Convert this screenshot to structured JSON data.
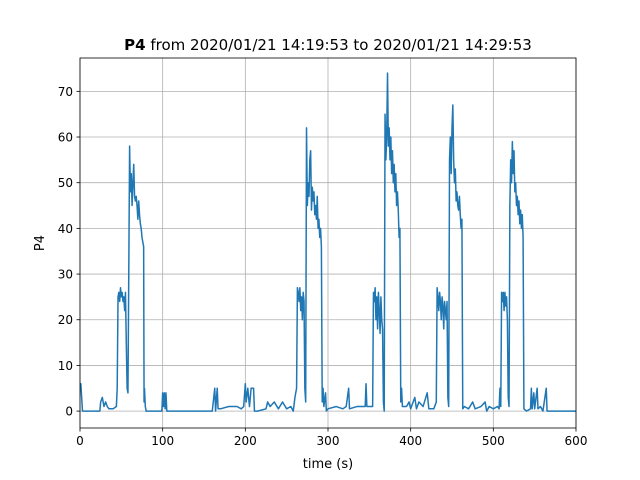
{
  "chart_data": {
    "type": "line",
    "title": {
      "variable": "P4",
      "text": "from 2020/01/21 14:19:53 to 2020/01/21 14:29:53"
    },
    "xlabel": "time (s)",
    "ylabel": "P4",
    "xlim": [
      0,
      600
    ],
    "ylim": [
      -3.7,
      77.3
    ],
    "xticks": [
      0,
      100,
      200,
      300,
      400,
      500,
      600
    ],
    "yticks": [
      0,
      10,
      20,
      30,
      40,
      50,
      60,
      70
    ],
    "grid": true,
    "series": [
      {
        "name": "P4",
        "color": "#1f77b4",
        "x": [
          0,
          1,
          2,
          3,
          10,
          20,
          24,
          25,
          27,
          29,
          31,
          33,
          35,
          40,
          44,
          45,
          46,
          47,
          48,
          49,
          50,
          51,
          52,
          53,
          54,
          55,
          56,
          57,
          58,
          59,
          60,
          61,
          62,
          63,
          64,
          65,
          66,
          67,
          68,
          69,
          70,
          71,
          72,
          73,
          74,
          75,
          76,
          77,
          77.5,
          78,
          79,
          80,
          99,
          100,
          101,
          102,
          103,
          104,
          105,
          160,
          163,
          164,
          166,
          167,
          170,
          180,
          190,
          195,
          198,
          200,
          201,
          203,
          205,
          207,
          210,
          211,
          215,
          225,
          227,
          230,
          235,
          240,
          245,
          250,
          255,
          258,
          260,
          262,
          263,
          264,
          265,
          266,
          267,
          268,
          269,
          270,
          271,
          272,
          273,
          274,
          275,
          276,
          277,
          278,
          279,
          280,
          281,
          282,
          283,
          284,
          285,
          286,
          287,
          288,
          289,
          290,
          291,
          292,
          293,
          294,
          295,
          297,
          298,
          300,
          310,
          318,
          322,
          325,
          326,
          335,
          345,
          346,
          347,
          350,
          354,
          355,
          356,
          357,
          358,
          359,
          360,
          361,
          362,
          363,
          364,
          365,
          366,
          367,
          368,
          369,
          370,
          371,
          372,
          373,
          374,
          375,
          376,
          377,
          378,
          379,
          380,
          381,
          382,
          383,
          384,
          385,
          386,
          387,
          388,
          389,
          390,
          395,
          398,
          400,
          405,
          407,
          410,
          415,
          420,
          422,
          428,
          431,
          432,
          433,
          434,
          435,
          436,
          437,
          438,
          439,
          440,
          441,
          442,
          443,
          444,
          445,
          446,
          447,
          448,
          449,
          450,
          451,
          452,
          453,
          454,
          455,
          456,
          457,
          458,
          459,
          460,
          461,
          462,
          463,
          465,
          470,
          475,
          478,
          485,
          490,
          492,
          495,
          500,
          505,
          507,
          508,
          509,
          510,
          511,
          512,
          513,
          514,
          515,
          516,
          517,
          518,
          519,
          520,
          521,
          522,
          523,
          524,
          525,
          526,
          527,
          528,
          529,
          530,
          531,
          532,
          533,
          534,
          535,
          536,
          537,
          540,
          545,
          546,
          547,
          549,
          550,
          553,
          554,
          557,
          560,
          564,
          565,
          600
        ],
        "values": [
          5,
          6,
          3,
          0,
          0,
          0,
          0,
          2,
          3,
          1,
          2,
          1,
          0.5,
          0.5,
          1,
          5,
          25,
          26,
          24,
          27,
          25,
          26,
          24,
          25,
          22,
          26,
          15,
          5,
          4,
          30,
          58,
          48,
          52,
          45,
          50,
          54,
          47,
          46,
          47,
          45,
          42,
          46,
          43,
          41,
          40,
          38,
          37,
          36,
          2,
          5,
          1,
          0,
          0,
          4,
          1,
          4,
          0.5,
          4,
          0,
          0,
          5,
          0,
          5,
          0.5,
          0.5,
          1,
          1,
          0.5,
          1,
          6,
          2,
          5,
          1,
          5,
          5,
          0,
          0,
          0.5,
          2,
          1,
          2,
          0.5,
          2,
          0.5,
          1,
          0,
          3,
          5,
          27,
          26,
          24,
          27,
          22,
          25,
          20,
          26,
          24,
          5,
          2,
          62,
          45,
          50,
          47,
          55,
          57,
          44,
          49,
          46,
          48,
          43,
          45,
          42,
          47,
          40,
          42,
          38,
          40,
          36,
          2,
          5,
          1,
          4,
          0,
          0.5,
          1,
          0.5,
          1,
          5,
          0.5,
          1,
          1,
          6,
          1,
          1,
          1,
          26,
          24,
          27,
          20,
          25,
          18,
          26,
          22,
          17,
          25,
          20,
          18,
          2,
          0,
          65,
          55,
          60,
          74,
          58,
          62,
          55,
          60,
          52,
          57,
          50,
          54,
          48,
          52,
          45,
          48,
          44,
          38,
          40,
          2,
          5,
          1,
          1,
          2,
          0.5,
          3,
          0.5,
          2,
          1,
          4,
          0.5,
          0.5,
          2,
          27,
          25,
          22,
          26,
          24,
          20,
          25,
          23,
          18,
          24,
          22,
          20,
          24,
          3,
          1,
          55,
          60,
          52,
          62,
          67,
          55,
          50,
          53,
          46,
          48,
          45,
          44,
          47,
          43,
          40,
          42,
          0.5,
          1,
          0.5,
          2,
          0.5,
          1,
          2,
          0,
          1,
          0.5,
          1,
          0.5,
          5,
          1,
          26,
          24,
          26,
          22,
          26,
          23,
          25,
          20,
          3,
          1,
          45,
          55,
          50,
          59,
          52,
          57,
          48,
          50,
          45,
          47,
          43,
          46,
          41,
          44,
          40,
          43,
          38,
          0.5,
          0,
          0.5,
          5,
          0.5,
          4,
          0.5,
          5,
          0.5,
          1,
          0,
          5,
          0,
          0
        ]
      }
    ]
  }
}
